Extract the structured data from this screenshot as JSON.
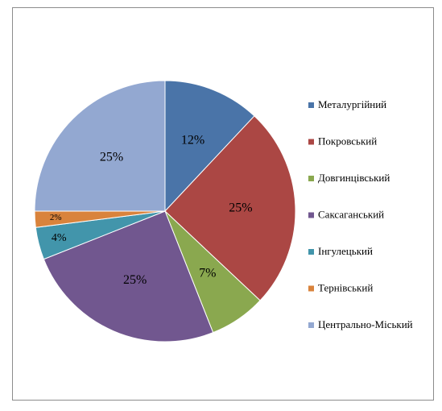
{
  "chart_data": {
    "type": "pie",
    "title": "",
    "legend_position": "right",
    "slices": [
      {
        "label": "Металургійний",
        "value": 12,
        "display": "12%",
        "color": "#4a74a8"
      },
      {
        "label": "Покровський",
        "value": 25,
        "display": "25%",
        "color": "#ab4744"
      },
      {
        "label": "Довгинцівський",
        "value": 7,
        "display": "7%",
        "color": "#8aa84f"
      },
      {
        "label": "Саксаганський",
        "value": 25,
        "display": "25%",
        "color": "#71578f"
      },
      {
        "label": "Інгулецький",
        "value": 4,
        "display": "4%",
        "color": "#4295ab"
      },
      {
        "label": "Тернівський",
        "value": 2,
        "display": "2%",
        "color": "#d9833c"
      },
      {
        "label": "Центрально-Міський",
        "value": 25,
        "display": "25%",
        "color": "#93a8d1"
      }
    ]
  }
}
